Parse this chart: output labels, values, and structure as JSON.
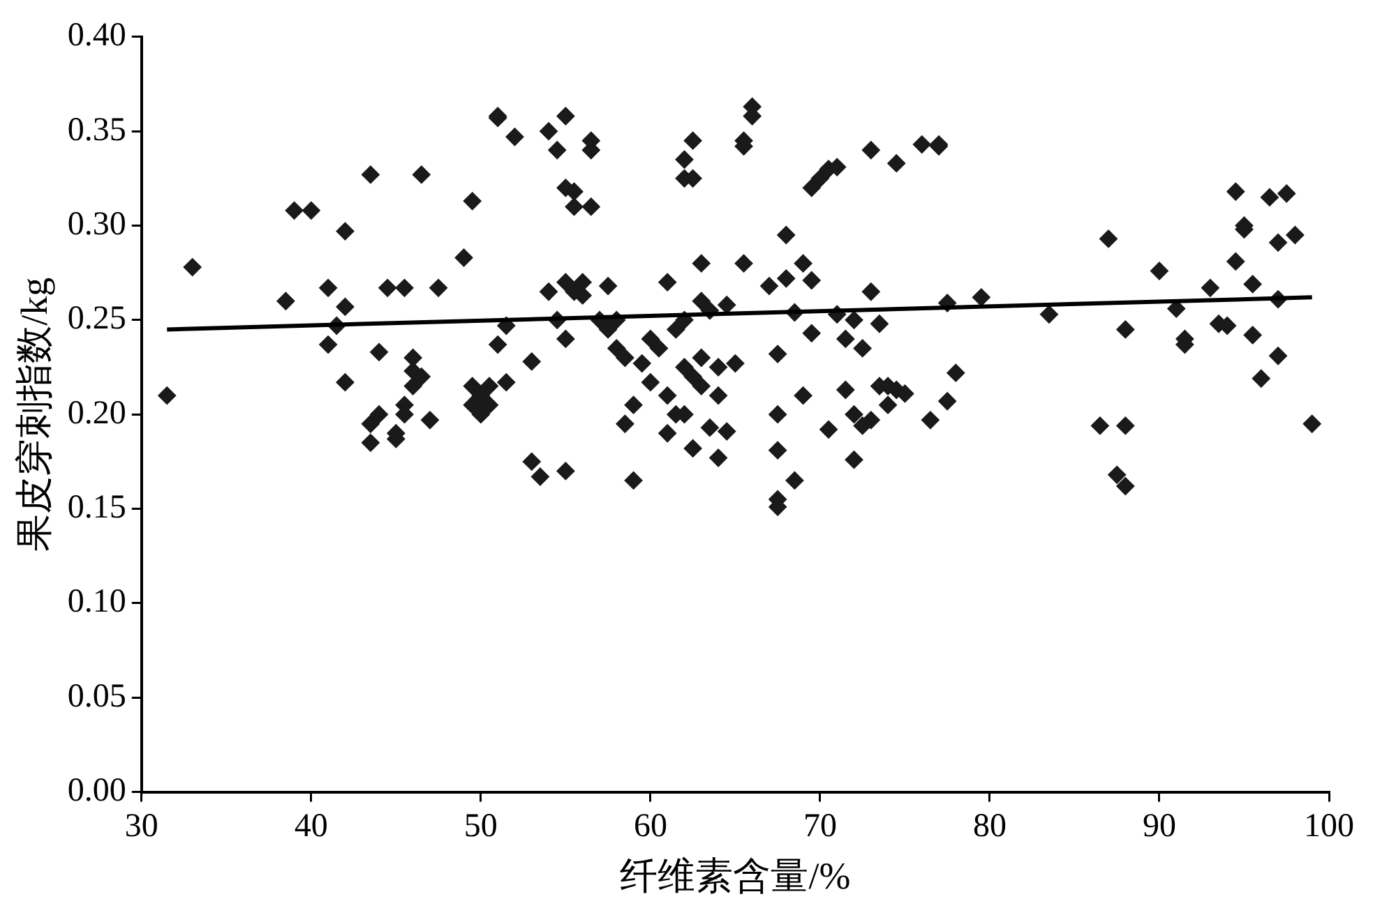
{
  "chart_data": {
    "type": "scatter",
    "xlabel": "纤维素含量/%",
    "ylabel": "果皮穿刺指数/kg",
    "xlim": [
      30,
      100
    ],
    "xticks": [
      30,
      40,
      50,
      60,
      70,
      80,
      90,
      100
    ],
    "ylim": [
      0,
      0.4
    ],
    "yticks": [
      {
        "value": 0,
        "label": "0.00"
      },
      {
        "value": 0.05,
        "label": "0.05"
      },
      {
        "value": 0.1,
        "label": "0.10"
      },
      {
        "value": 0.15,
        "label": "0.15"
      },
      {
        "value": 0.2,
        "label": "0.20"
      },
      {
        "value": 0.25,
        "label": "0.25"
      },
      {
        "value": 0.3,
        "label": "0.30"
      },
      {
        "value": 0.35,
        "label": "0.35"
      },
      {
        "value": 0.4,
        "label": "0.40"
      }
    ],
    "grid": false,
    "legend": false,
    "marker": "diamond",
    "series": [
      {
        "color": "#1a1a1a",
        "x": [
          31.5,
          33,
          38.5,
          39,
          40,
          41,
          41,
          41.5,
          42,
          42,
          42,
          43.5,
          43.5,
          43.5,
          44,
          44,
          44.5,
          45,
          45,
          45.5,
          45.5,
          45.5,
          46,
          46,
          46,
          46.5,
          46.5,
          47,
          47.5,
          49,
          49.5,
          49.5,
          49.5,
          50,
          50,
          50.5,
          50.5,
          51,
          51,
          51,
          51.5,
          51.5,
          52,
          53,
          53,
          53.5,
          54,
          54,
          54.5,
          54.5,
          55,
          55,
          55,
          55,
          55,
          55.5,
          55.5,
          55.5,
          56,
          56,
          56.5,
          56.5,
          56.5,
          57,
          57.5,
          57.5,
          58,
          58,
          58.5,
          58.5,
          59,
          59,
          59.5,
          60,
          60,
          60.5,
          61,
          61,
          61,
          61.5,
          61.5,
          62,
          62,
          62,
          62,
          62,
          62.5,
          62.5,
          62.5,
          62.5,
          63,
          63,
          63,
          63,
          63.5,
          63.5,
          64,
          64,
          64,
          64.5,
          64.5,
          65,
          65.5,
          65.5,
          65.5,
          66,
          66,
          67,
          67.5,
          67.5,
          67.5,
          67.5,
          67.5,
          68,
          68,
          68.5,
          68.5,
          69,
          69,
          69.5,
          69.5,
          69.5,
          70,
          70.5,
          70.5,
          71,
          71,
          71.5,
          71.5,
          72,
          72,
          72,
          72.5,
          72.5,
          73,
          73,
          73,
          73.5,
          73.5,
          74,
          74,
          74.5,
          74.5,
          75,
          76,
          76.5,
          77,
          77,
          77.5,
          77.5,
          78,
          79.5,
          83.5,
          86.5,
          87,
          87.5,
          88,
          88,
          88,
          90,
          91,
          91.5,
          91.5,
          93,
          93.5,
          94,
          94.5,
          94.5,
          95,
          95,
          95.5,
          95.5,
          96,
          96.5,
          97,
          97,
          97,
          97.5,
          98,
          99
        ],
        "values": [
          0.21,
          0.278,
          0.26,
          0.308,
          0.308,
          0.267,
          0.237,
          0.247,
          0.257,
          0.217,
          0.297,
          0.327,
          0.185,
          0.195,
          0.233,
          0.2,
          0.267,
          0.19,
          0.187,
          0.267,
          0.205,
          0.2,
          0.23,
          0.223,
          0.215,
          0.327,
          0.22,
          0.197,
          0.267,
          0.283,
          0.313,
          0.215,
          0.205,
          0.21,
          0.2,
          0.215,
          0.205,
          0.357,
          0.358,
          0.237,
          0.217,
          0.247,
          0.347,
          0.228,
          0.175,
          0.167,
          0.35,
          0.265,
          0.34,
          0.25,
          0.358,
          0.32,
          0.27,
          0.24,
          0.17,
          0.318,
          0.31,
          0.265,
          0.27,
          0.263,
          0.34,
          0.345,
          0.31,
          0.25,
          0.245,
          0.268,
          0.25,
          0.235,
          0.195,
          0.23,
          0.205,
          0.165,
          0.227,
          0.217,
          0.24,
          0.235,
          0.27,
          0.21,
          0.19,
          0.245,
          0.2,
          0.335,
          0.325,
          0.25,
          0.225,
          0.2,
          0.345,
          0.325,
          0.182,
          0.22,
          0.28,
          0.26,
          0.23,
          0.215,
          0.255,
          0.193,
          0.21,
          0.225,
          0.177,
          0.258,
          0.191,
          0.227,
          0.28,
          0.345,
          0.342,
          0.363,
          0.358,
          0.268,
          0.232,
          0.2,
          0.181,
          0.155,
          0.151,
          0.295,
          0.272,
          0.254,
          0.165,
          0.28,
          0.21,
          0.32,
          0.243,
          0.271,
          0.325,
          0.33,
          0.192,
          0.253,
          0.331,
          0.213,
          0.24,
          0.25,
          0.2,
          0.176,
          0.194,
          0.235,
          0.34,
          0.265,
          0.197,
          0.248,
          0.215,
          0.205,
          0.215,
          0.333,
          0.213,
          0.211,
          0.343,
          0.197,
          0.342,
          0.343,
          0.259,
          0.207,
          0.222,
          0.262,
          0.253,
          0.194,
          0.293,
          0.168,
          0.245,
          0.194,
          0.162,
          0.276,
          0.256,
          0.24,
          0.237,
          0.267,
          0.248,
          0.247,
          0.318,
          0.281,
          0.3,
          0.298,
          0.269,
          0.242,
          0.219,
          0.315,
          0.261,
          0.291,
          0.231,
          0.317,
          0.295,
          0.195
        ]
      },
      {
        "type": "line",
        "color": "#000000",
        "marker": "none",
        "x": [
          31.5,
          99
        ],
        "values": [
          0.245,
          0.262
        ]
      }
    ]
  }
}
